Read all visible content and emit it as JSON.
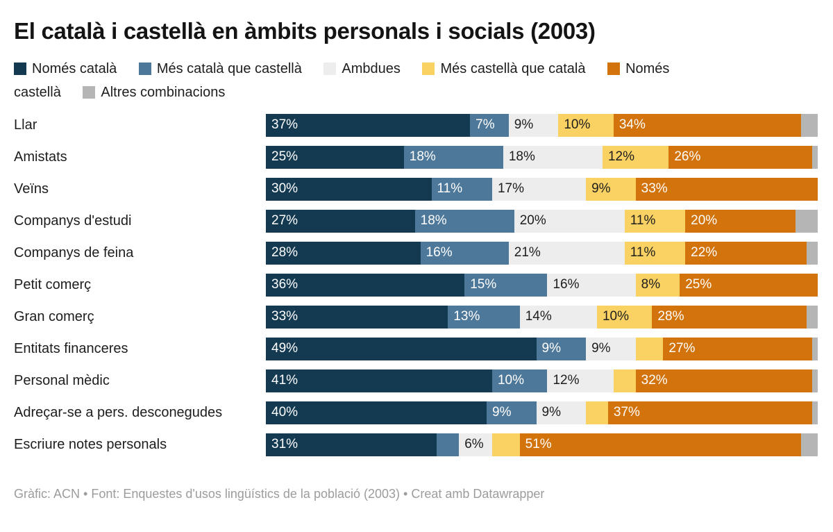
{
  "title": "El català i castellà en àmbits personals i socials (2003)",
  "footer": "Gràfic: ACN • Font: Enquestes d'usos lingüístics de la població (2003) • Creat amb Datawrapper",
  "colors": {
    "nomes_catala": "#143a52",
    "mes_catala": "#4e7899",
    "ambdues": "#ededed",
    "mes_castella": "#fad263",
    "nomes_castella": "#d2730c",
    "altres": "#b5b5b5",
    "title_text": "#141414",
    "footer_text": "#9c9c9c"
  },
  "chart_data": {
    "type": "bar",
    "stacked": true,
    "orientation": "horizontal",
    "unit": "%",
    "xlim": [
      0,
      100
    ],
    "label_min_value": 6,
    "legend_position": "top",
    "grid": false,
    "title": "El català i castellà en àmbits personals i socials (2003)",
    "categories": [
      "Llar",
      "Amistats",
      "Veïns",
      "Companys d'estudi",
      "Companys de feina",
      "Petit comerç",
      "Gran comerç",
      "Entitats financeres",
      "Personal mèdic",
      "Adreçar-se a pers. desconegudes",
      "Escriure notes personals"
    ],
    "series": [
      {
        "name": "Només català",
        "key": "nomes-catala",
        "color": "#143a52",
        "text_color": "#ffffff",
        "values": [
          37,
          25,
          30,
          27,
          28,
          36,
          33,
          49,
          41,
          40,
          31
        ]
      },
      {
        "name": "Més català que castellà",
        "key": "mes-catala-que-castella",
        "color": "#4e7899",
        "text_color": "#ffffff",
        "values": [
          7,
          18,
          11,
          18,
          16,
          15,
          13,
          9,
          10,
          9,
          4
        ]
      },
      {
        "name": "Ambdues",
        "key": "ambdues",
        "color": "#ededed",
        "text_color": "#1d1d1d",
        "values": [
          9,
          18,
          17,
          20,
          21,
          16,
          14,
          9,
          12,
          9,
          6
        ]
      },
      {
        "name": "Més castellà que català",
        "key": "mes-castella-que-catala",
        "color": "#fad263",
        "text_color": "#1d1d1d",
        "values": [
          10,
          12,
          9,
          11,
          11,
          8,
          10,
          5,
          4,
          4,
          5
        ]
      },
      {
        "name": "Només castellà",
        "key": "nomes-castella",
        "color": "#d2730c",
        "text_color": "#ffffff",
        "values": [
          34,
          26,
          33,
          20,
          22,
          25,
          28,
          27,
          32,
          37,
          51
        ]
      },
      {
        "name": "Altres combinacions",
        "key": "altres-combinacions",
        "color": "#b5b5b5",
        "text_color": "#1d1d1d",
        "values": [
          3,
          1,
          0,
          4,
          2,
          0,
          2,
          1,
          1,
          1,
          3
        ]
      }
    ]
  }
}
